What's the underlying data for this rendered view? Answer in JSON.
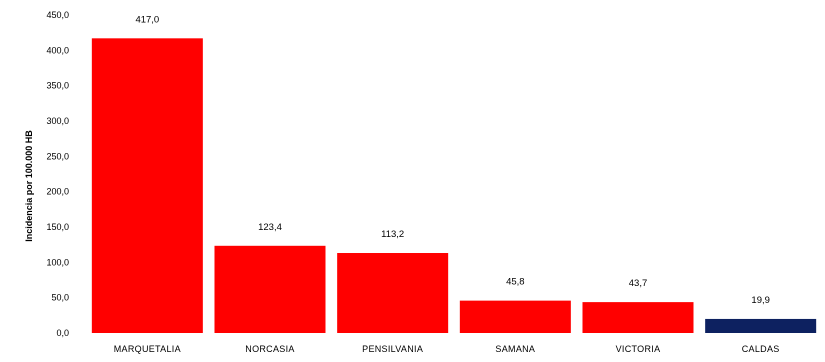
{
  "chart_data": {
    "type": "bar",
    "categories": [
      "MARQUETALIA",
      "NORCASIA",
      "PENSILVANIA",
      "SAMANA",
      "VICTORIA",
      "CALDAS"
    ],
    "values": [
      417.0,
      123.4,
      113.2,
      45.8,
      43.7,
      19.9
    ],
    "data_labels": [
      "417,0",
      "123,4",
      "113,2",
      "45,8",
      "43,7",
      "19,9"
    ],
    "ylabel": "Incidencia por 100.000 HB",
    "ylim": [
      0,
      450
    ],
    "y_ticks": [
      0,
      50,
      100,
      150,
      200,
      250,
      300,
      350,
      400,
      450
    ],
    "y_tick_labels": [
      "0,0",
      "50,0",
      "100,0",
      "150,0",
      "200,0",
      "250,0",
      "300,0",
      "350,0",
      "400,0",
      "450,0"
    ],
    "grid": false,
    "legend": "none",
    "colors": {
      "municipality": "#ff0000",
      "department": "#0d2160"
    },
    "bar_colors": [
      "#ff0000",
      "#ff0000",
      "#ff0000",
      "#ff0000",
      "#ff0000",
      "#0d2160"
    ]
  }
}
